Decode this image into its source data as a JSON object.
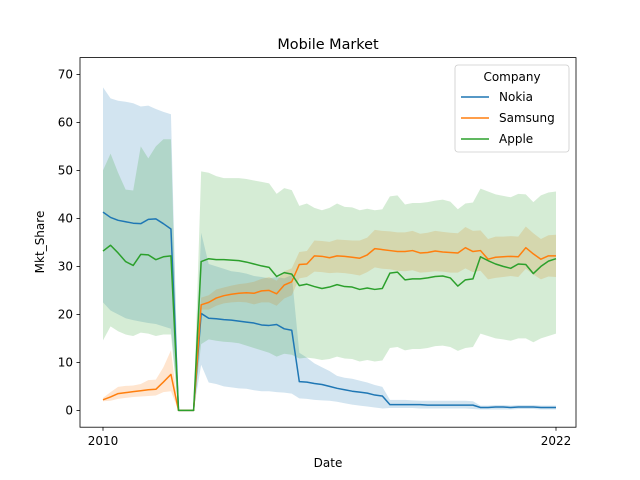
{
  "chart_data": {
    "type": "line",
    "title": "Mobile Market",
    "xlabel": "Date",
    "ylabel": "Mkt_Share",
    "x_ticks": [
      "2010",
      "2022"
    ],
    "y_ticks": [
      0,
      10,
      20,
      30,
      40,
      50,
      60,
      70
    ],
    "ylim": [
      -3.5,
      73.5
    ],
    "grid": false,
    "legend": {
      "title": "Company",
      "placement": "top-right"
    },
    "x_points": 61,
    "series": [
      {
        "name": "Nokia",
        "color": "#1f77b4",
        "values": [
          41.3,
          40.2,
          39.6,
          39.3,
          39.0,
          38.9,
          39.8,
          39.9,
          38.9,
          37.8,
          0,
          0,
          0,
          20.2,
          19.2,
          19.1,
          18.9,
          18.8,
          18.6,
          18.4,
          18.2,
          17.8,
          17.7,
          17.9,
          17.0,
          16.7,
          6.0,
          5.9,
          5.6,
          5.4,
          5.0,
          4.6,
          4.3,
          4.0,
          3.8,
          3.6,
          3.2,
          3.0,
          1.2,
          1.2,
          1.2,
          1.2,
          1.2,
          1.1,
          1.1,
          1.1,
          1.1,
          1.1,
          1.1,
          1.1,
          0.6,
          0.6,
          0.7,
          0.7,
          0.6,
          0.7,
          0.7,
          0.7,
          0.6,
          0.6,
          0.6
        ],
        "lower": [
          22.5,
          20.8,
          20.0,
          19.2,
          18.8,
          18.5,
          18.2,
          18.0,
          17.5,
          17.0,
          0,
          0,
          0,
          9.5,
          5.8,
          5.5,
          5.0,
          4.8,
          4.6,
          4.5,
          4.2,
          4.0,
          4.0,
          3.8,
          3.7,
          3.5,
          2.5,
          2.4,
          2.2,
          2.1,
          2.0,
          1.8,
          1.5,
          1.2,
          1.0,
          0.8,
          0.6,
          0.4,
          0.5,
          0.5,
          0.5,
          0.5,
          0.4,
          0.4,
          0.4,
          0.4,
          0.4,
          0.4,
          0.4,
          0.3,
          0.2,
          0.2,
          0.2,
          0.2,
          0.2,
          0.3,
          0.3,
          0.3,
          0.2,
          0.2,
          0.2
        ],
        "upper": [
          67.3,
          65.0,
          64.5,
          64.3,
          64.0,
          63.3,
          63.5,
          62.8,
          62.2,
          61.7,
          0,
          0,
          0,
          37.0,
          30.5,
          30.0,
          29.5,
          29.0,
          28.8,
          28.5,
          28.0,
          27.8,
          27.5,
          27.8,
          27.5,
          28.2,
          12.0,
          11.0,
          9.8,
          9.0,
          8.2,
          7.2,
          6.8,
          6.6,
          6.2,
          5.8,
          5.3,
          4.9,
          2.2,
          2.2,
          2.2,
          2.1,
          2.0,
          2.0,
          2.0,
          2.0,
          2.0,
          2.0,
          2.0,
          1.9,
          1.0,
          1.0,
          1.1,
          1.1,
          1.0,
          1.1,
          1.1,
          1.1,
          1.0,
          1.0,
          1.0
        ]
      },
      {
        "name": "Samsung",
        "color": "#ff7f0e",
        "values": [
          2.2,
          2.8,
          3.5,
          3.7,
          3.9,
          4.1,
          4.3,
          4.4,
          5.9,
          7.5,
          0,
          0,
          0,
          22.0,
          22.5,
          23.4,
          23.9,
          24.2,
          24.4,
          24.5,
          24.4,
          24.9,
          25.0,
          24.3,
          26.1,
          26.8,
          30.4,
          30.5,
          32.2,
          32.1,
          31.8,
          32.2,
          32.1,
          31.9,
          31.7,
          32.4,
          33.7,
          33.5,
          33.3,
          33.1,
          33.1,
          33.3,
          32.8,
          32.9,
          33.2,
          33.0,
          32.9,
          32.8,
          33.9,
          33.1,
          33.3,
          31.5,
          31.9,
          32.0,
          32.1,
          32.0,
          33.9,
          32.6,
          31.5,
          32.2,
          32.2
        ],
        "lower": [
          1.9,
          2.0,
          2.4,
          2.6,
          2.8,
          2.9,
          3.0,
          3.1,
          3.8,
          4.0,
          0,
          0,
          0,
          21.0,
          21.0,
          21.8,
          22.3,
          22.5,
          22.6,
          22.5,
          22.1,
          22.5,
          22.5,
          21.8,
          23.3,
          24.0,
          27.5,
          27.8,
          28.9,
          28.8,
          28.6,
          28.7,
          28.6,
          28.4,
          28.1,
          28.8,
          29.8,
          29.5,
          29.4,
          29.1,
          29.0,
          29.2,
          28.7,
          28.8,
          29.0,
          28.9,
          28.7,
          28.7,
          29.6,
          28.8,
          29.1,
          27.3,
          27.6,
          27.8,
          28.0,
          27.8,
          29.5,
          28.3,
          27.3,
          27.9,
          27.8
        ],
        "upper": [
          2.6,
          3.8,
          4.9,
          5.1,
          5.2,
          5.5,
          6.3,
          6.4,
          9.0,
          12.5,
          0,
          0,
          0,
          23.5,
          24.0,
          25.2,
          25.6,
          26.0,
          26.3,
          26.5,
          26.8,
          27.4,
          27.8,
          27.0,
          29.0,
          29.6,
          33.0,
          33.2,
          35.4,
          35.3,
          35.1,
          35.6,
          35.5,
          35.4,
          35.4,
          36.0,
          37.6,
          37.4,
          37.3,
          37.1,
          37.1,
          37.4,
          36.8,
          37.0,
          37.4,
          37.2,
          37.0,
          36.9,
          38.2,
          37.4,
          37.5,
          35.7,
          36.2,
          36.2,
          36.3,
          36.2,
          38.3,
          36.9,
          35.7,
          36.5,
          36.6
        ]
      },
      {
        "name": "Apple",
        "color": "#2ca02c",
        "values": [
          33.2,
          34.4,
          32.8,
          31.0,
          30.2,
          32.5,
          32.4,
          31.4,
          32.0,
          32.2,
          0,
          0,
          0,
          31.0,
          31.6,
          31.4,
          31.4,
          31.3,
          31.2,
          30.9,
          30.5,
          30.1,
          29.8,
          27.9,
          28.7,
          28.4,
          26.0,
          26.3,
          25.8,
          25.4,
          25.7,
          26.2,
          25.8,
          25.7,
          25.2,
          25.5,
          25.2,
          25.4,
          28.6,
          28.8,
          27.2,
          27.4,
          27.4,
          27.6,
          27.9,
          28.0,
          27.6,
          25.9,
          27.2,
          27.4,
          32.0,
          31.2,
          30.5,
          30.0,
          29.6,
          30.5,
          30.4,
          28.5,
          30.0,
          31.1,
          31.6
        ],
        "lower": [
          14.6,
          17.5,
          16.5,
          15.8,
          15.5,
          16.2,
          16.0,
          15.5,
          15.8,
          15.8,
          0,
          0,
          0,
          13.8,
          14.8,
          14.5,
          14.3,
          14.2,
          14.0,
          13.5,
          13.0,
          12.5,
          12.0,
          11.2,
          11.8,
          11.6,
          10.8,
          11.0,
          10.8,
          10.5,
          10.7,
          11.2,
          10.8,
          10.7,
          10.2,
          10.5,
          10.2,
          10.4,
          13.0,
          13.2,
          12.5,
          12.8,
          12.8,
          13.0,
          13.4,
          13.5,
          13.2,
          12.4,
          13.0,
          13.2,
          16.0,
          15.5,
          15.0,
          14.8,
          14.5,
          15.0,
          15.0,
          14.2,
          15.0,
          15.5,
          16.0
        ],
        "upper": [
          50.0,
          53.5,
          49.5,
          46.0,
          45.8,
          55.0,
          52.5,
          55.0,
          56.5,
          56.5,
          0,
          0,
          0,
          49.8,
          49.5,
          48.8,
          48.4,
          48.4,
          48.4,
          48.2,
          47.9,
          47.6,
          47.3,
          45.1,
          46.3,
          45.9,
          42.6,
          43.1,
          42.2,
          41.7,
          42.2,
          43.1,
          42.4,
          42.3,
          41.7,
          42.0,
          41.7,
          41.9,
          44.6,
          44.8,
          42.9,
          43.2,
          43.2,
          43.4,
          43.7,
          43.9,
          43.5,
          41.9,
          43.1,
          43.3,
          46.2,
          45.6,
          45.0,
          44.7,
          44.4,
          45.1,
          45.0,
          43.4,
          44.8,
          45.4,
          45.6
        ]
      }
    ]
  }
}
